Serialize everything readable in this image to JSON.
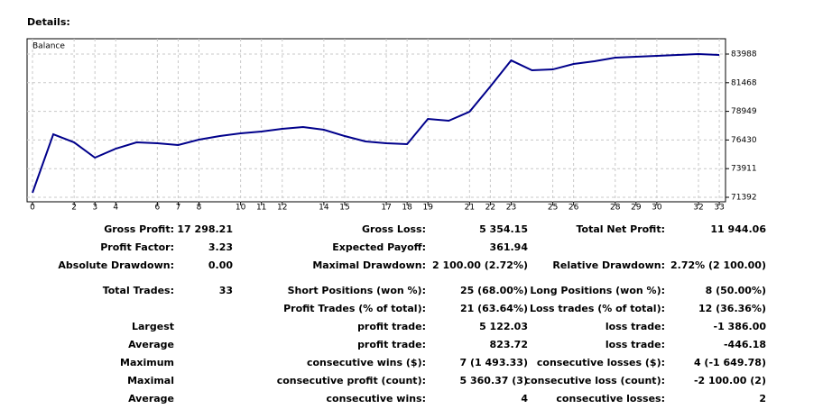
{
  "heading": "Details:",
  "chart_data": {
    "type": "line",
    "title": "Balance",
    "x": [
      0,
      1,
      2,
      3,
      4,
      5,
      6,
      7,
      8,
      9,
      10,
      11,
      12,
      13,
      14,
      15,
      16,
      17,
      18,
      19,
      20,
      21,
      22,
      23,
      24,
      25,
      26,
      27,
      28,
      29,
      30,
      31,
      32,
      33
    ],
    "series": [
      {
        "name": "Balance",
        "color": "#00008b",
        "values": [
          71788,
          76936,
          76223,
          74877,
          75669,
          76223,
          76144,
          75985,
          76461,
          76778,
          77015,
          77174,
          77414,
          77570,
          77332,
          76778,
          76302,
          76144,
          76065,
          78282,
          78124,
          78916,
          81134,
          83430,
          82559,
          82638,
          83114,
          83351,
          83668,
          83747,
          83826,
          83906,
          83985,
          83906
        ]
      }
    ],
    "xlim": [
      0,
      33.3
    ],
    "xticks": [
      0,
      2,
      3,
      4,
      6,
      7,
      8,
      10,
      11,
      12,
      14,
      15,
      17,
      18,
      19,
      21,
      22,
      23,
      25,
      26,
      28,
      29,
      30,
      32,
      33
    ],
    "ylim": [
      70996,
      85334
    ],
    "yticks": [
      71392,
      73911,
      76430,
      78949,
      81468,
      83988
    ],
    "grid": true
  },
  "table": {
    "rows": [
      [
        "Gross Profit:",
        "17 298.21",
        "Gross Loss:",
        "5 354.15",
        "Total Net Profit:",
        "11 944.06"
      ],
      [
        "Profit Factor:",
        "3.23",
        "Expected Payoff:",
        "361.94",
        null,
        null
      ],
      [
        "Absolute Drawdown:",
        "0.00",
        "Maximal Drawdown:",
        "2 100.00 (2.72%)",
        "Relative Drawdown:",
        "2.72% (2 100.00)"
      ],
      [
        "Total Trades:",
        "33",
        "Short Positions (won %):",
        "25 (68.00%)",
        "Long Positions (won %):",
        "8 (50.00%)"
      ],
      [
        null,
        null,
        "Profit Trades (% of total):",
        "21 (63.64%)",
        "Loss trades (% of total):",
        "12 (36.36%)"
      ],
      [
        "Largest",
        null,
        "profit trade:",
        "5 122.03",
        "loss trade:",
        "-1 386.00"
      ],
      [
        "Average",
        null,
        "profit trade:",
        "823.72",
        "loss trade:",
        "-446.18"
      ],
      [
        "Maximum",
        null,
        "consecutive wins ($):",
        "7 (1 493.33)",
        "consecutive losses ($):",
        "4 (-1 649.78)"
      ],
      [
        "Maximal",
        null,
        "consecutive profit (count):",
        "5 360.37 (3)",
        "consecutive loss (count):",
        "-2 100.00 (2)"
      ],
      [
        "Average",
        null,
        "consecutive wins:",
        "4",
        "consecutive losses:",
        "2"
      ]
    ]
  }
}
